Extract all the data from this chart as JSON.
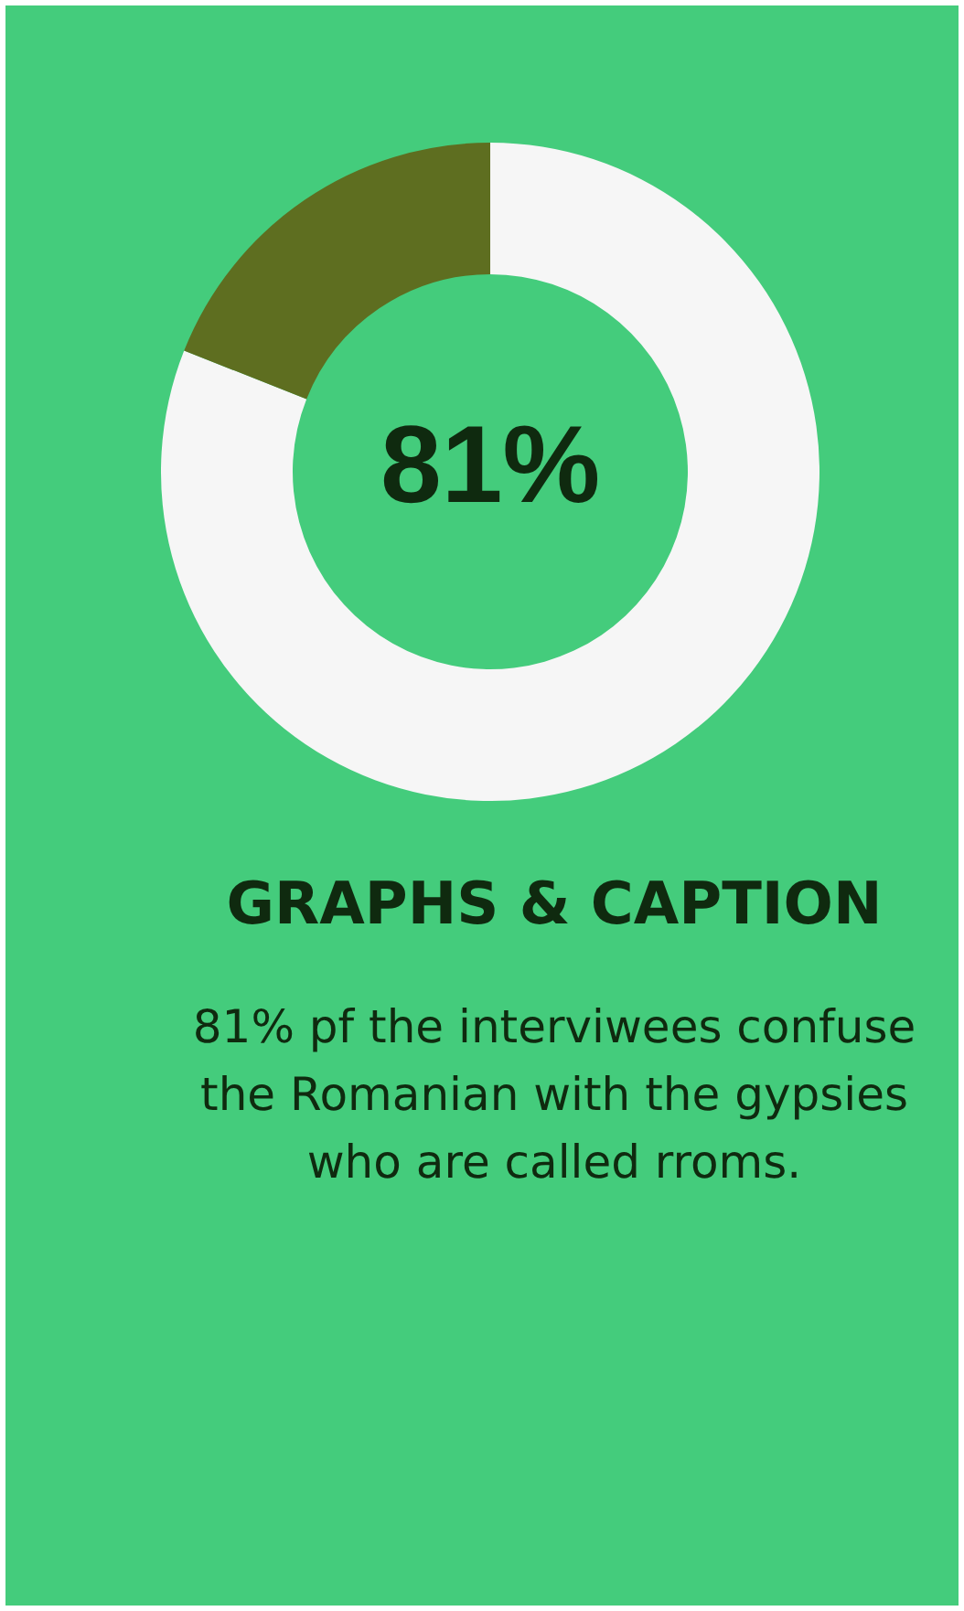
{
  "chart_data": {
    "type": "donut",
    "title": "GRAPHS & CAPTION",
    "categories": [
      null,
      null
    ],
    "values": [
      81,
      19
    ],
    "colors": [
      "#f6f6f6",
      "#5e6e20"
    ],
    "value_labels": [
      "81%",
      null
    ],
    "legend": false,
    "annotations": [
      "81% pf the interviwees confuse the Romanian with the gypsies who are called rroms."
    ]
  }
}
